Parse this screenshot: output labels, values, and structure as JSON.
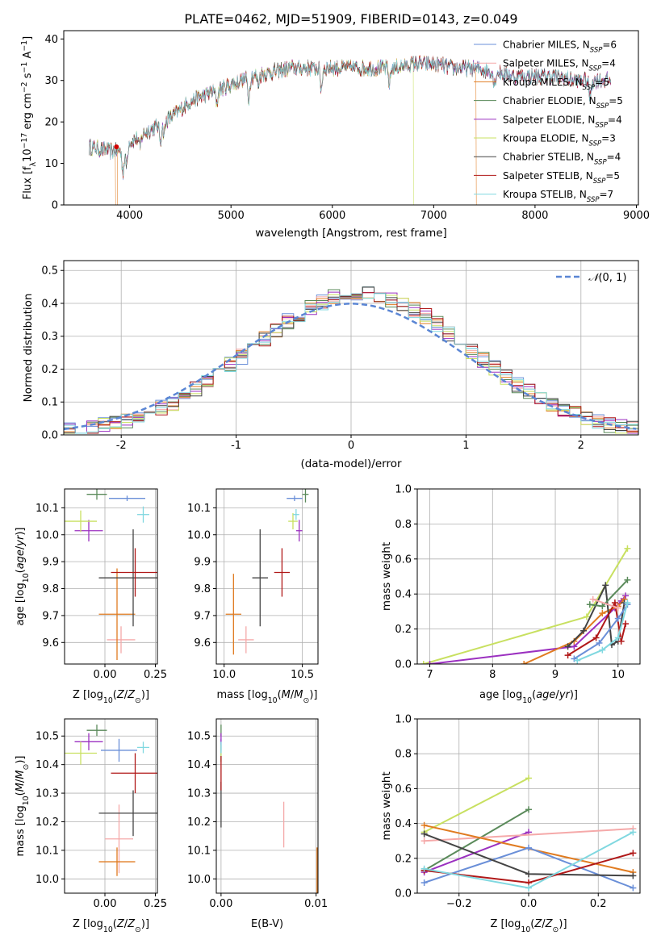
{
  "figure_title": "PLATE=0462, MJD=51909, FIBERID=0143, z=0.049",
  "colors": {
    "Chabrier MILES": "#6a8fd8",
    "Salpeter MILES": "#f5a9a9",
    "Kroupa MILES": "#e07b20",
    "Chabrier ELODIE": "#5a8a5a",
    "Salpeter ELODIE": "#9b30c0",
    "Kroupa ELODIE": "#c8e060",
    "Chabrier STELIB": "#444444",
    "Salpeter STELIB": "#b01818",
    "Kroupa STELIB": "#80d8e0",
    "pink": "#e080b0"
  },
  "chart_data": [
    {
      "id": "spectrum",
      "type": "line",
      "title": "PLATE=0462, MJD=51909, FIBERID=0143, z=0.049",
      "xlabel": "wavelength [Angstrom, rest frame]",
      "ylabel_prefix": "Flux [f",
      "xlim": [
        3350,
        9020
      ],
      "ylim": [
        0,
        42
      ],
      "xticks": [
        4000,
        5000,
        6000,
        7000,
        8000,
        9000
      ],
      "yticks": [
        0,
        10,
        20,
        30,
        40
      ],
      "legend_position": "top-right",
      "legend": [
        {
          "text": "Chabrier MILES, N",
          "sub": "SSP",
          "tail": "=6",
          "color": "#6a8fd8"
        },
        {
          "text": "Salpeter MILES, N",
          "sub": "SSP",
          "tail": "=4",
          "color": "#f5a9a9"
        },
        {
          "text": "Kroupa MILES, N",
          "sub": "SSP",
          "tail": "=5",
          "color": "#e07b20"
        },
        {
          "text": "Chabrier ELODIE, N",
          "sub": "SSP",
          "tail": "=5",
          "color": "#5a8a5a"
        },
        {
          "text": "Salpeter ELODIE, N",
          "sub": "SSP",
          "tail": "=4",
          "color": "#9b30c0"
        },
        {
          "text": "Kroupa ELODIE, N",
          "sub": "SSP",
          "tail": "=3",
          "color": "#c8e060"
        },
        {
          "text": "Chabrier STELIB, N",
          "sub": "SSP",
          "tail": "=4",
          "color": "#444444"
        },
        {
          "text": "Salpeter STELIB, N",
          "sub": "SSP",
          "tail": "=5",
          "color": "#b01818"
        },
        {
          "text": "Kroupa STELIB, N",
          "sub": "SSP",
          "tail": "=7",
          "color": "#80d8e0"
        }
      ],
      "continuum_knots": [
        [
          3600,
          14
        ],
        [
          3800,
          13
        ],
        [
          3950,
          13
        ],
        [
          4000,
          15
        ],
        [
          4200,
          18
        ],
        [
          4400,
          21
        ],
        [
          4600,
          25
        ],
        [
          4800,
          27
        ],
        [
          5000,
          29
        ],
        [
          5200,
          31
        ],
        [
          5400,
          32
        ],
        [
          5600,
          33
        ],
        [
          5800,
          33
        ],
        [
          6000,
          33
        ],
        [
          6200,
          33
        ],
        [
          6400,
          33
        ],
        [
          6600,
          33
        ],
        [
          6800,
          34
        ],
        [
          7000,
          34
        ],
        [
          7200,
          33
        ],
        [
          7400,
          33
        ],
        [
          7600,
          32
        ],
        [
          7800,
          31
        ],
        [
          8000,
          31
        ],
        [
          8200,
          31
        ],
        [
          8400,
          30
        ],
        [
          8600,
          30
        ],
        [
          8750,
          30
        ]
      ],
      "absorption_lines": [
        [
          3934,
          5
        ],
        [
          3969,
          4
        ],
        [
          4101,
          3
        ],
        [
          4304,
          4
        ],
        [
          4340,
          3
        ],
        [
          4861,
          3
        ],
        [
          5175,
          5
        ],
        [
          5270,
          2
        ],
        [
          5890,
          5
        ],
        [
          6563,
          4
        ],
        [
          7600,
          3
        ],
        [
          8542,
          4
        ]
      ],
      "truncations": [
        {
          "model": "Kroupa ELODIE",
          "wave": 6800
        },
        {
          "model": "Kroupa MILES",
          "wave": 7420
        },
        {
          "model": "Kroupa MILES",
          "wave": 3880,
          "reverse": true
        }
      ]
    },
    {
      "id": "residuals",
      "type": "histogram",
      "xlabel": "(data-model)/error",
      "ylabel": "Normed distribution",
      "xlim": [
        -2.5,
        2.5
      ],
      "ylim": [
        0,
        0.53
      ],
      "xticks": [
        -2,
        -1,
        0,
        1,
        2
      ],
      "yticks": [
        0.0,
        0.1,
        0.2,
        0.3,
        0.4,
        0.5
      ],
      "bin_width": 0.1,
      "legend": [
        {
          "text": "N(0,1)",
          "display_head": "𝒩",
          "display_tail": "(0, 1)",
          "color": "#5b86d4",
          "style": "dashed"
        }
      ],
      "legend_position": "top-right"
    },
    {
      "id": "age_vs_Z",
      "type": "errorbar",
      "xlabel": "Z [log10(Z/Z⊙)]",
      "ylabel": "age  [log10(age/yr)]",
      "xlim": [
        -0.2,
        0.26
      ],
      "ylim": [
        9.52,
        10.17
      ],
      "xticks": [
        0.0,
        0.25
      ],
      "xticklabels": [
        "0.00",
        "0.25"
      ],
      "extra_xtick_labels": [
        "0.00",
        "0.25"
      ],
      "yticks": [
        9.6,
        9.7,
        9.8,
        9.9,
        10.0,
        10.1
      ],
      "points": [
        {
          "model": "Chabrier MILES",
          "x": 0.11,
          "xerr": 0.09,
          "y": 10.135,
          "yerr": 0.01
        },
        {
          "model": "Salpeter MILES",
          "x": 0.08,
          "xerr": 0.07,
          "y": 9.61,
          "yerr": 0.05
        },
        {
          "model": "Kroupa MILES",
          "x": 0.06,
          "xerr": 0.09,
          "y": 9.705,
          "yerr": 0.17
        },
        {
          "model": "Chabrier ELODIE",
          "x": -0.04,
          "xerr": 0.05,
          "y": 10.15,
          "yerr": 0.02
        },
        {
          "model": "Salpeter ELODIE",
          "x": -0.08,
          "xerr": 0.07,
          "y": 10.015,
          "yerr": 0.04
        },
        {
          "model": "Kroupa ELODIE",
          "x": -0.12,
          "xerr": 0.08,
          "y": 10.05,
          "yerr": 0.04
        },
        {
          "model": "Chabrier STELIB",
          "x": 0.14,
          "xerr": 0.17,
          "y": 9.84,
          "yerr": 0.18
        },
        {
          "model": "Salpeter STELIB",
          "x": 0.15,
          "xerr": 0.12,
          "y": 9.86,
          "yerr": 0.09
        },
        {
          "model": "Kroupa STELIB",
          "x": 0.19,
          "xerr": 0.03,
          "y": 10.075,
          "yerr": 0.03
        }
      ]
    },
    {
      "id": "age_vs_mass",
      "type": "errorbar",
      "xlabel": "mass [log10(M/M⊙)]",
      "xlim": [
        9.95,
        10.6
      ],
      "ylim": [
        9.52,
        10.17
      ],
      "xticks": [
        10.0,
        10.5
      ],
      "xticklabels": [
        "10.0",
        "10.5"
      ],
      "yticks": [
        9.6,
        9.7,
        9.8,
        9.9,
        10.0,
        10.1
      ],
      "points": [
        {
          "model": "Chabrier MILES",
          "x": 10.45,
          "xerr": 0.05,
          "y": 10.135,
          "yerr": 0.01
        },
        {
          "model": "Salpeter MILES",
          "x": 10.14,
          "xerr": 0.05,
          "y": 9.61,
          "yerr": 0.05
        },
        {
          "model": "Kroupa MILES",
          "x": 10.06,
          "xerr": 0.05,
          "y": 9.705,
          "yerr": 0.15
        },
        {
          "model": "Chabrier ELODIE",
          "x": 10.52,
          "xerr": 0.02,
          "y": 10.15,
          "yerr": 0.03
        },
        {
          "model": "Salpeter ELODIE",
          "x": 10.48,
          "xerr": 0.02,
          "y": 10.015,
          "yerr": 0.04
        },
        {
          "model": "Kroupa ELODIE",
          "x": 10.44,
          "xerr": 0.03,
          "y": 10.05,
          "yerr": 0.03
        },
        {
          "model": "Chabrier STELIB",
          "x": 10.23,
          "xerr": 0.05,
          "y": 9.84,
          "yerr": 0.18
        },
        {
          "model": "Salpeter STELIB",
          "x": 10.37,
          "xerr": 0.05,
          "y": 9.86,
          "yerr": 0.09
        },
        {
          "model": "Kroupa STELIB",
          "x": 10.46,
          "xerr": 0.02,
          "y": 10.075,
          "yerr": 0.02
        }
      ]
    },
    {
      "id": "mass_vs_Z",
      "type": "errorbar",
      "xlabel": "Z [log10(Z/Z⊙)]",
      "ylabel": "mass [log10(M/M⊙)]",
      "xlim": [
        -0.2,
        0.26
      ],
      "ylim": [
        9.95,
        10.56
      ],
      "xticks": [
        0.0,
        0.25
      ],
      "xticklabels": [
        "0.00",
        "0.25"
      ],
      "yticks": [
        10.0,
        10.1,
        10.2,
        10.3,
        10.4,
        10.5
      ],
      "points": [
        {
          "model": "Chabrier MILES",
          "x": 0.07,
          "xerr": 0.09,
          "y": 10.45,
          "yerr": 0.04
        },
        {
          "model": "Salpeter MILES",
          "x": 0.07,
          "xerr": 0.07,
          "y": 10.14,
          "yerr": 0.12
        },
        {
          "model": "Kroupa MILES",
          "x": 0.06,
          "xerr": 0.09,
          "y": 10.06,
          "yerr": 0.05
        },
        {
          "model": "Chabrier ELODIE",
          "x": -0.04,
          "xerr": 0.05,
          "y": 10.52,
          "yerr": 0.02
        },
        {
          "model": "Salpeter ELODIE",
          "x": -0.08,
          "xerr": 0.07,
          "y": 10.48,
          "yerr": 0.03
        },
        {
          "model": "Kroupa ELODIE",
          "x": -0.12,
          "xerr": 0.08,
          "y": 10.44,
          "yerr": 0.04
        },
        {
          "model": "Chabrier STELIB",
          "x": 0.14,
          "xerr": 0.17,
          "y": 10.23,
          "yerr": 0.08
        },
        {
          "model": "Salpeter STELIB",
          "x": 0.15,
          "xerr": 0.12,
          "y": 10.37,
          "yerr": 0.07
        },
        {
          "model": "Kroupa STELIB",
          "x": 0.19,
          "xerr": 0.03,
          "y": 10.46,
          "yerr": 0.02
        }
      ]
    },
    {
      "id": "mass_vs_EBV",
      "type": "errorbar",
      "xlabel": "E(B-V)",
      "xlim": [
        -0.0005,
        0.0102
      ],
      "ylim": [
        9.95,
        10.56
      ],
      "xticks": [
        0.0,
        0.01
      ],
      "xticklabels": [
        "0.00",
        "0.01"
      ],
      "yticks": [
        10.0,
        10.1,
        10.2,
        10.3,
        10.4,
        10.5
      ],
      "points": [
        {
          "model": "Chabrier MILES",
          "x": 0.0,
          "xerr": 0,
          "y": 10.45,
          "yerr": 0.04
        },
        {
          "model": "Salpeter MILES",
          "x": 0.0066,
          "xerr": 0,
          "y": 10.19,
          "yerr": 0.08
        },
        {
          "model": "Kroupa MILES",
          "x": 0.0101,
          "xerr": 0,
          "y": 10.03,
          "yerr": 0.08
        },
        {
          "model": "Chabrier ELODIE",
          "x": 0.0,
          "xerr": 0,
          "y": 10.52,
          "yerr": 0.02
        },
        {
          "model": "Salpeter ELODIE",
          "x": 0.0,
          "xerr": 0,
          "y": 10.48,
          "yerr": 0.03
        },
        {
          "model": "Kroupa ELODIE",
          "x": 0.0,
          "xerr": 0,
          "y": 10.44,
          "yerr": 0.03
        },
        {
          "model": "Chabrier STELIB",
          "x": 0.0,
          "xerr": 0,
          "y": 10.26,
          "yerr": 0.08
        },
        {
          "model": "Salpeter STELIB",
          "x": 0.0,
          "xerr": 0,
          "y": 10.37,
          "yerr": 0.06
        },
        {
          "model": "Kroupa STELIB",
          "x": 0.0,
          "xerr": 0,
          "y": 10.46,
          "yerr": 0.02
        }
      ]
    },
    {
      "id": "weight_vs_age",
      "type": "line",
      "xlabel": "age  [log10(age/yr)]",
      "ylabel": "mass weight",
      "xlim": [
        6.8,
        10.35
      ],
      "ylim": [
        0,
        1.0
      ],
      "xticks": [
        7,
        8,
        9,
        10
      ],
      "yticks": [
        0.0,
        0.2,
        0.4,
        0.6,
        0.8,
        1.0
      ],
      "series": [
        {
          "model": "Kroupa ELODIE",
          "points": [
            [
              6.9,
              0.0
            ],
            [
              9.5,
              0.27
            ],
            [
              10.15,
              0.66
            ]
          ]
        },
        {
          "model": "Salpeter ELODIE",
          "points": [
            [
              7.0,
              0.0
            ],
            [
              9.3,
              0.1
            ],
            [
              9.95,
              0.32
            ],
            [
              10.05,
              0.36
            ],
            [
              10.12,
              0.39
            ]
          ]
        },
        {
          "model": "Kroupa MILES",
          "points": [
            [
              8.5,
              0.0
            ],
            [
              9.3,
              0.13
            ],
            [
              9.75,
              0.29
            ],
            [
              10.0,
              0.33
            ],
            [
              10.1,
              0.37
            ]
          ]
        },
        {
          "model": "Chabrier STELIB",
          "points": [
            [
              9.2,
              0.1
            ],
            [
              9.45,
              0.19
            ],
            [
              9.8,
              0.45
            ],
            [
              9.9,
              0.11
            ],
            [
              10.0,
              0.13
            ],
            [
              10.1,
              0.35
            ]
          ]
        },
        {
          "model": "Salpeter STELIB",
          "points": [
            [
              9.2,
              0.05
            ],
            [
              9.65,
              0.15
            ],
            [
              9.95,
              0.35
            ],
            [
              10.05,
              0.13
            ],
            [
              10.12,
              0.23
            ]
          ]
        },
        {
          "model": "Chabrier ELODIE",
          "points": [
            [
              9.55,
              0.34
            ],
            [
              9.75,
              0.33
            ],
            [
              10.15,
              0.48
            ]
          ]
        },
        {
          "model": "Chabrier MILES",
          "points": [
            [
              9.3,
              0.03
            ],
            [
              9.7,
              0.12
            ],
            [
              10.0,
              0.26
            ],
            [
              10.15,
              0.34
            ]
          ]
        },
        {
          "model": "Kroupa STELIB",
          "points": [
            [
              9.35,
              0.02
            ],
            [
              9.75,
              0.08
            ],
            [
              10.0,
              0.15
            ],
            [
              10.15,
              0.35
            ]
          ]
        },
        {
          "model": "Salpeter MILES",
          "points": [
            [
              9.6,
              0.37
            ],
            [
              10.0,
              0.32
            ]
          ]
        }
      ]
    },
    {
      "id": "weight_vs_Z",
      "type": "line",
      "xlabel": "Z [log10(Z/Z⊙)]",
      "ylabel": "mass weight",
      "xlim": [
        -0.32,
        0.32
      ],
      "ylim": [
        0,
        1.0
      ],
      "xticks": [
        -0.2,
        0.0,
        0.2
      ],
      "xticklabels": [
        "−0.2",
        "0.0",
        "0.2"
      ],
      "yticks": [
        0.0,
        0.2,
        0.4,
        0.6,
        0.8,
        1.0
      ],
      "series": [
        {
          "model": "Kroupa ELODIE",
          "points": [
            [
              -0.3,
              0.35
            ],
            [
              0.0,
              0.66
            ]
          ]
        },
        {
          "model": "Chabrier ELODIE",
          "points": [
            [
              -0.3,
              0.13
            ],
            [
              0.0,
              0.48
            ]
          ]
        },
        {
          "model": "Salpeter ELODIE",
          "points": [
            [
              -0.3,
              0.12
            ],
            [
              0.0,
              0.35
            ]
          ]
        },
        {
          "model": "Salpeter MILES",
          "points": [
            [
              -0.3,
              0.3
            ],
            [
              0.3,
              0.37
            ]
          ]
        },
        {
          "model": "Kroupa MILES",
          "points": [
            [
              -0.3,
              0.39
            ],
            [
              0.3,
              0.12
            ]
          ]
        },
        {
          "model": "Chabrier MILES",
          "points": [
            [
              -0.3,
              0.06
            ],
            [
              0.0,
              0.26
            ],
            [
              0.3,
              0.03
            ]
          ]
        },
        {
          "model": "Chabrier STELIB",
          "points": [
            [
              -0.3,
              0.34
            ],
            [
              0.0,
              0.11
            ],
            [
              0.3,
              0.1
            ]
          ]
        },
        {
          "model": "Salpeter STELIB",
          "points": [
            [
              -0.3,
              0.13
            ],
            [
              0.0,
              0.06
            ],
            [
              0.3,
              0.23
            ]
          ]
        },
        {
          "model": "Kroupa STELIB",
          "points": [
            [
              -0.3,
              0.14
            ],
            [
              0.0,
              0.03
            ],
            [
              0.3,
              0.35
            ]
          ]
        }
      ]
    }
  ]
}
